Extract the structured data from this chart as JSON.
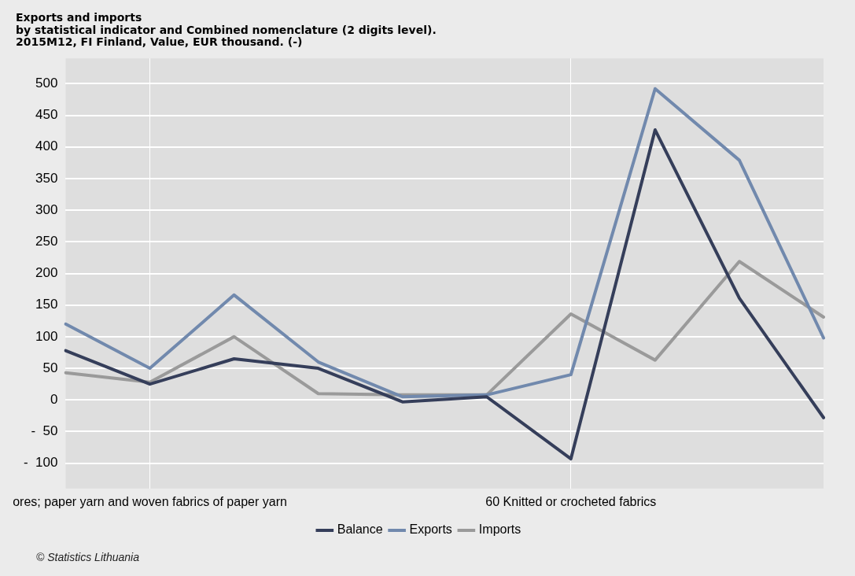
{
  "chart_data": {
    "type": "line",
    "title": "Exports and imports",
    "subtitle": "by statistical indicator and Combined nomenclature (2 digits level).\n2015M12, FI Finland, Value, EUR thousand. (-)",
    "categories": [
      null,
      "ores; paper yarn and woven fabrics of paper yarn",
      null,
      null,
      null,
      null,
      "60 Knitted or crocheted fabrics",
      null,
      null,
      null
    ],
    "series": [
      {
        "name": "Balance",
        "color": "#353e5a",
        "values": [
          78,
          25,
          65,
          50,
          -3,
          5,
          -93,
          427,
          161,
          -28
        ]
      },
      {
        "name": "Exports",
        "color": "#7189ad",
        "values": [
          120,
          50,
          166,
          60,
          5,
          8,
          40,
          492,
          379,
          98
        ]
      },
      {
        "name": "Imports",
        "color": "#9a9a9a",
        "values": [
          43,
          28,
          100,
          10,
          8,
          8,
          136,
          63,
          219,
          131
        ]
      }
    ],
    "ylim": [
      -140,
      540
    ],
    "yticks": [
      {
        "value": -100,
        "label": "-  100"
      },
      {
        "value": -50,
        "label": "-  50"
      },
      0,
      50,
      100,
      150,
      200,
      250,
      300,
      350,
      400,
      450,
      500
    ],
    "grid": true,
    "legend": "bottom",
    "marker": "none",
    "line_style": "solid",
    "annotations": [
      "© Statistics Lithuania"
    ]
  }
}
